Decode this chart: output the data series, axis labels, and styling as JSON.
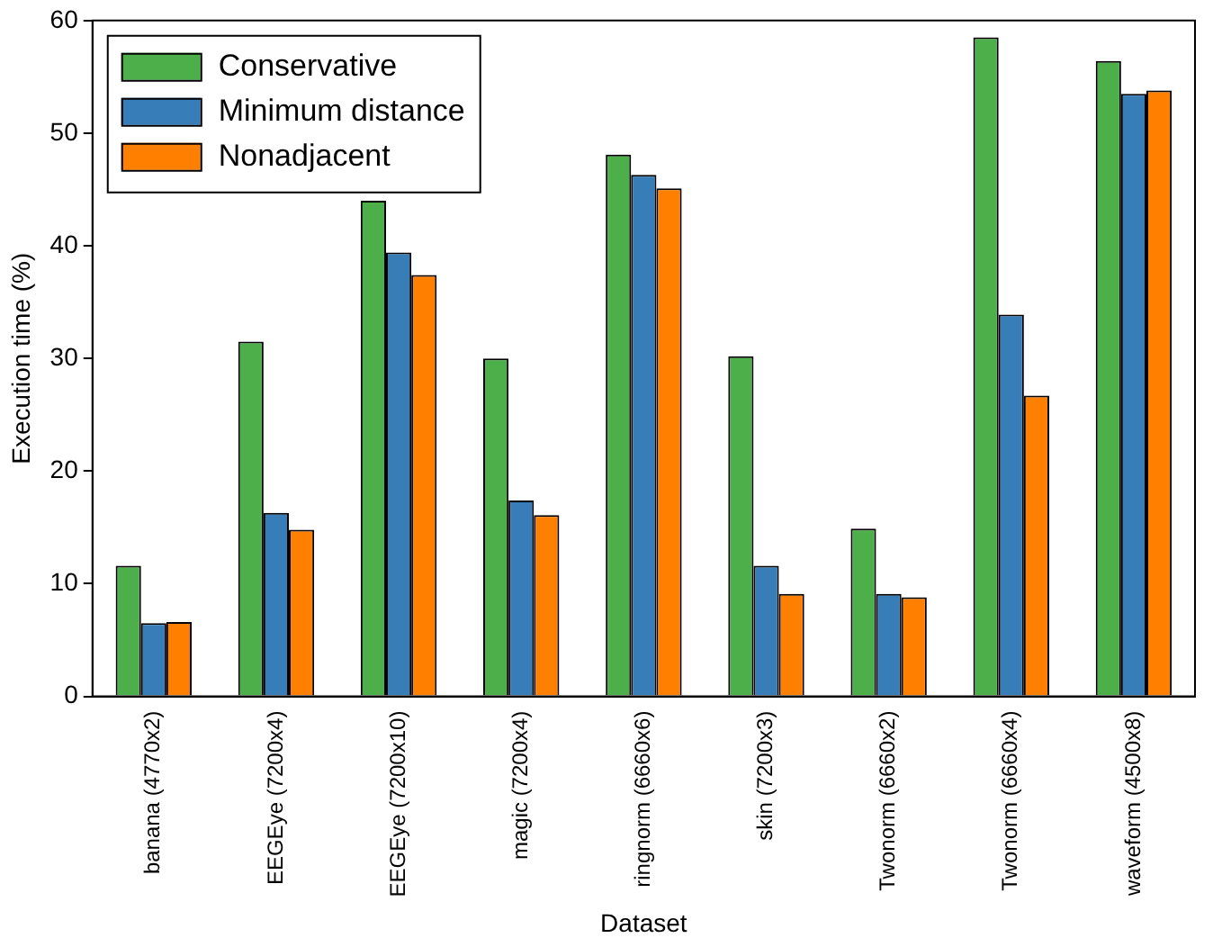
{
  "chart_data": {
    "type": "bar",
    "xlabel": "Dataset",
    "ylabel": "Execution time (%)",
    "categories": [
      "banana (4770x2)",
      "EEGEye (7200x4)",
      "EEGEye (7200x10)",
      "magic (7200x4)",
      "ringnorm (6660x6)",
      "skin (7200x3)",
      "Twonorm (6660x2)",
      "Twonorm (6660x4)",
      "waveform (4500x8)"
    ],
    "series": [
      {
        "name": "Conservative",
        "color": "#4daf4a",
        "values": [
          11.6,
          31.5,
          44,
          30.0,
          48.1,
          30.2,
          14.9,
          58.5,
          56.4
        ]
      },
      {
        "name": "Minimum distance",
        "color": "#377eb8",
        "values": [
          6.5,
          16.3,
          39.4,
          17.4,
          46.3,
          11.6,
          9.1,
          33.9,
          53.5
        ]
      },
      {
        "name": "Nonadjacent",
        "color": "#ff7f00",
        "values": [
          6.6,
          14.8,
          37.4,
          16.1,
          45.1,
          9.1,
          8.8,
          26.7,
          53.8
        ]
      }
    ],
    "ylim": [
      0,
      60
    ],
    "yticks": [
      0,
      10,
      20,
      30,
      40,
      50,
      60
    ],
    "grid": false,
    "legend": "top left"
  }
}
